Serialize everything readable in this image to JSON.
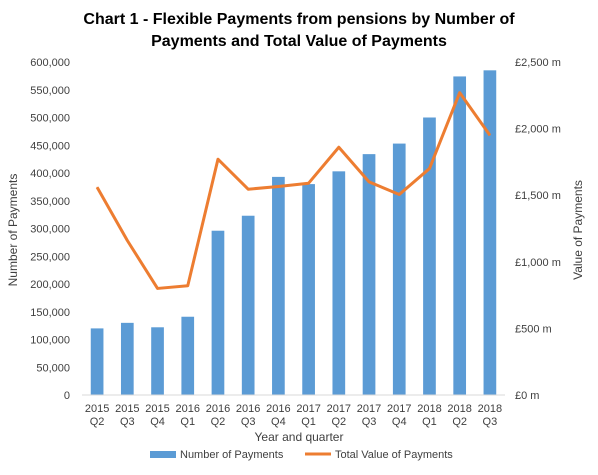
{
  "chart_data": {
    "type": "bar",
    "title_line1": "Chart 1 - Flexible Payments from pensions by Number of",
    "title_line2": "Payments and Total Value of Payments",
    "categories": [
      [
        "2015",
        "Q2"
      ],
      [
        "2015",
        "Q3"
      ],
      [
        "2015",
        "Q4"
      ],
      [
        "2016",
        "Q1"
      ],
      [
        "2016",
        "Q2"
      ],
      [
        "2016",
        "Q3"
      ],
      [
        "2016",
        "Q4"
      ],
      [
        "2017",
        "Q1"
      ],
      [
        "2017",
        "Q2"
      ],
      [
        "2017",
        "Q3"
      ],
      [
        "2017",
        "Q4"
      ],
      [
        "2018",
        "Q1"
      ],
      [
        "2018",
        "Q2"
      ],
      [
        "2018",
        "Q3"
      ]
    ],
    "xlabel": "Year and quarter",
    "ylabel": "Number of Payments",
    "ylabel_right": "Value of Payments",
    "ylim": [
      0,
      600000
    ],
    "ylim_right": [
      0,
      2500
    ],
    "yticks": [
      "0",
      "50,000",
      "100,000",
      "150,000",
      "200,000",
      "250,000",
      "300,000",
      "350,000",
      "400,000",
      "450,000",
      "500,000",
      "550,000",
      "600,000"
    ],
    "yticks_right": [
      "£0 m",
      "£500 m",
      "£1,000 m",
      "£1,500 m",
      "£2,000 m",
      "£2,500 m"
    ],
    "series": [
      {
        "name": "Number of Payments",
        "type": "bar",
        "axis": "left",
        "color": "#5b9bd5",
        "values": [
          120000,
          130000,
          122000,
          141000,
          296000,
          323000,
          393000,
          380000,
          403000,
          434000,
          453000,
          500000,
          574000,
          585000
        ]
      },
      {
        "name": "Total Value of Payments",
        "type": "line",
        "axis": "right",
        "color": "#ed7d31",
        "values": [
          1560,
          1160,
          800,
          820,
          1770,
          1545,
          1565,
          1590,
          1860,
          1600,
          1505,
          1700,
          2270,
          1950
        ]
      }
    ],
    "grid": false,
    "legend_position": "bottom"
  }
}
